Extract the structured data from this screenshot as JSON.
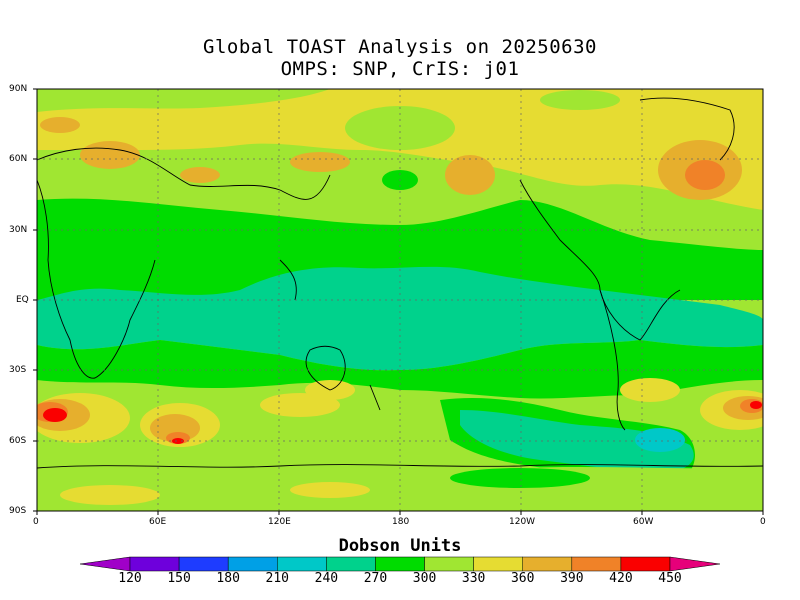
{
  "title_line1": "Global TOAST Analysis on 20250630",
  "title_line2": "OMPS: SNP, CrIS: j01",
  "colorbar": {
    "title": "Dobson Units",
    "labels": [
      "120",
      "150",
      "180",
      "210",
      "240",
      "270",
      "300",
      "330",
      "360",
      "390",
      "420",
      "450"
    ],
    "colors": [
      "#a000c8",
      "#6e00dc",
      "#1e3cff",
      "#00a0e6",
      "#00c8c8",
      "#00d28c",
      "#00dc00",
      "#a0e632",
      "#e6dc32",
      "#e6af2d",
      "#f08228",
      "#fa0000",
      "#e6007a"
    ]
  },
  "map": {
    "x_tick_labels": [
      "0",
      "60E",
      "120E",
      "180",
      "120W",
      "60W",
      "0"
    ],
    "y_tick_labels": [
      "90N",
      "60N",
      "30N",
      "EQ",
      "30S",
      "60S",
      "90S"
    ]
  }
}
